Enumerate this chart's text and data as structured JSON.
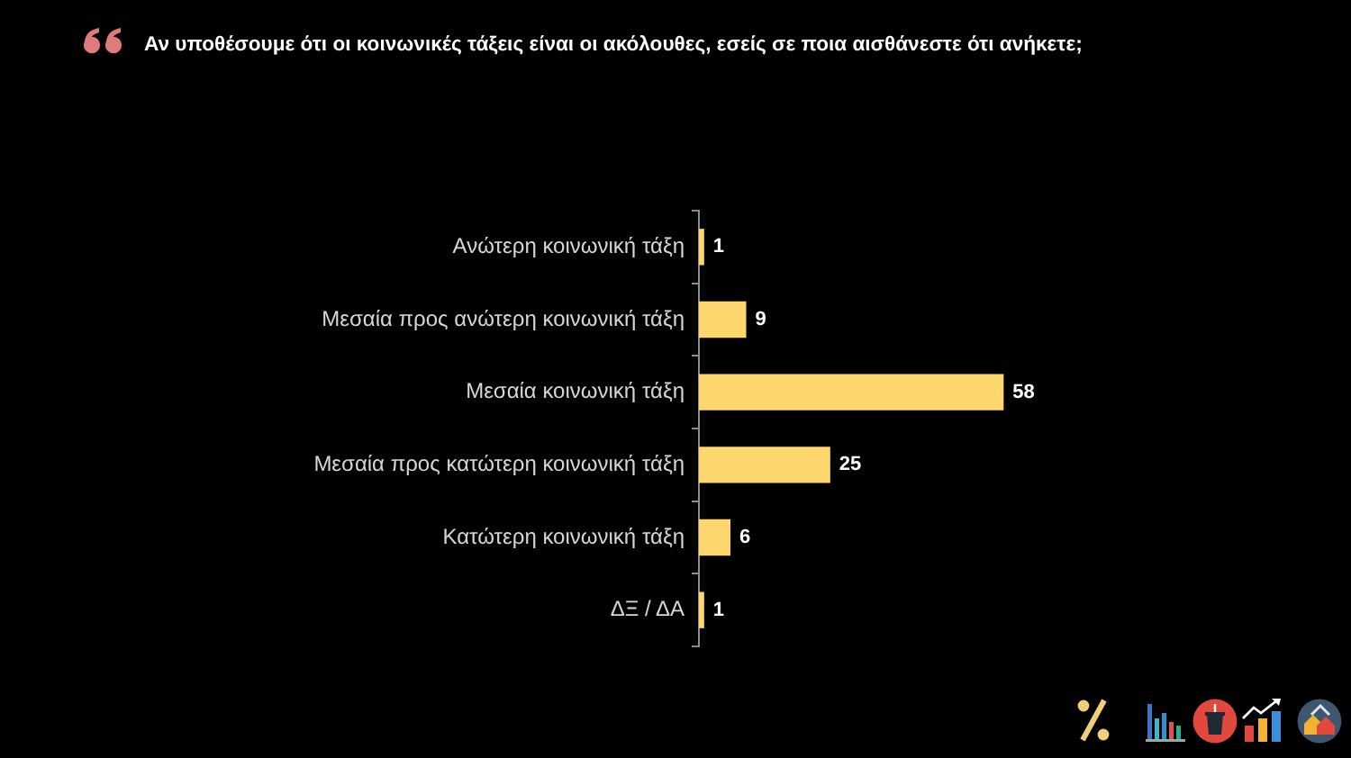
{
  "chart_data": {
    "type": "bar",
    "orientation": "horizontal",
    "title": "Αν υποθέσουμε ότι οι κοινωνικές τάξεις είναι οι ακόλουθες, εσείς σε ποια αισθάνεστε ότι ανήκετε;",
    "categories": [
      "Ανώτερη κοινωνική τάξη",
      "Μεσαία προς ανώτερη κοινωνική τάξη",
      "Μεσαία κοινωνική τάξη",
      "Μεσαία προς κατώτερη κοινωνική τάξη",
      "Κατώτερη κοινωνική τάξη",
      "ΔΞ / ΔΑ"
    ],
    "values": [
      1,
      9,
      58,
      25,
      6,
      1
    ],
    "color": "#fdd66e",
    "data_labels": true,
    "tick_labels": "y"
  }
}
